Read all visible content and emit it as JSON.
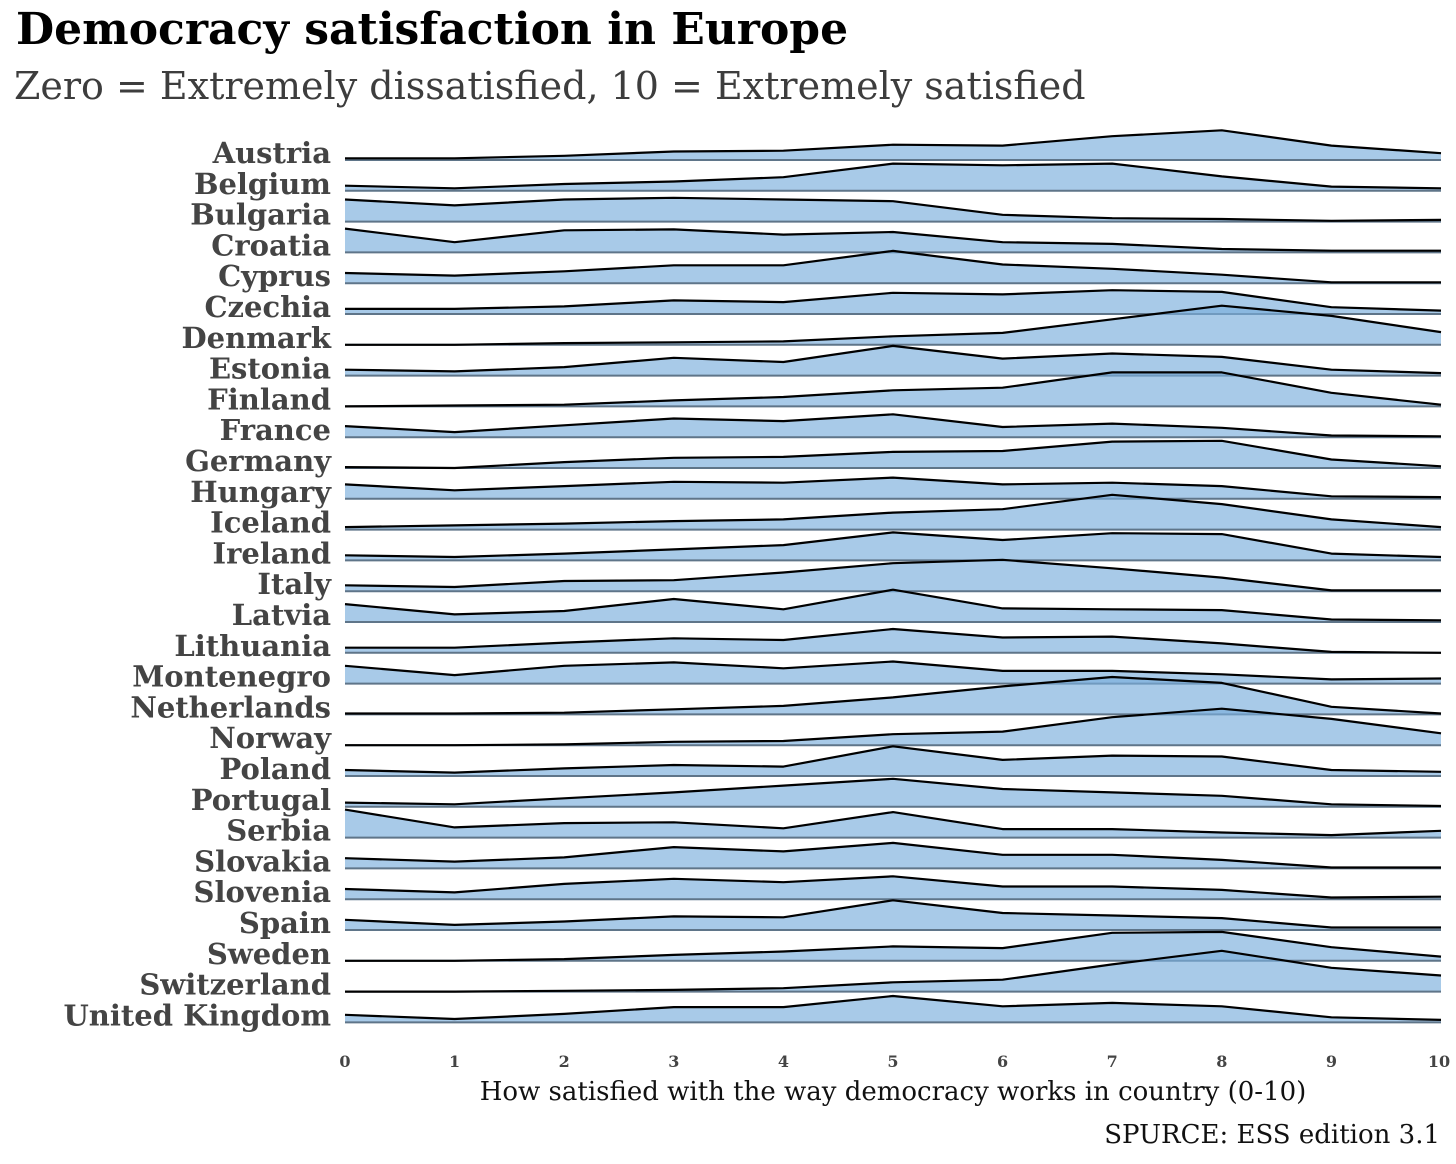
{
  "chart_data": {
    "type": "area",
    "title": "Democracy satisfaction in Europe",
    "subtitle": "Zero = Extremely dissatisfied, 10 = Extremely satisfied",
    "xlabel": "How satisfied with the way democracy works in country (0-10)",
    "source": "SPURCE: ESS edition 3.1",
    "x": [
      0,
      1,
      2,
      3,
      4,
      5,
      6,
      7,
      8,
      9,
      10
    ],
    "xlim": [
      0,
      10
    ],
    "categories": [
      "Austria",
      "Belgium",
      "Bulgaria",
      "Croatia",
      "Cyprus",
      "Czechia",
      "Denmark",
      "Estonia",
      "Finland",
      "France",
      "Germany",
      "Hungary",
      "Iceland",
      "Ireland",
      "Italy",
      "Latvia",
      "Lithuania",
      "Montenegro",
      "Netherlands",
      "Norway",
      "Poland",
      "Portugal",
      "Serbia",
      "Slovakia",
      "Slovenia",
      "Spain",
      "Sweden",
      "Switzerland",
      "United Kingdom"
    ],
    "fill_color": "#7aaedb",
    "fill_opacity": 0.65,
    "line_color": "#000000",
    "baseline_color": "#5f7589",
    "series": [
      {
        "name": "Austria",
        "values": [
          0.1,
          0.1,
          0.25,
          0.5,
          0.55,
          0.9,
          0.85,
          1.4,
          1.75,
          0.85,
          0.4
        ]
      },
      {
        "name": "Belgium",
        "values": [
          0.3,
          0.15,
          0.4,
          0.55,
          0.8,
          1.6,
          1.5,
          1.6,
          0.85,
          0.25,
          0.15
        ]
      },
      {
        "name": "Bulgaria",
        "values": [
          1.3,
          0.95,
          1.3,
          1.4,
          1.3,
          1.2,
          0.4,
          0.2,
          0.15,
          0.05,
          0.1
        ]
      },
      {
        "name": "Croatia",
        "values": [
          1.4,
          0.6,
          1.3,
          1.35,
          1.05,
          1.2,
          0.6,
          0.5,
          0.2,
          0.1,
          0.1
        ]
      },
      {
        "name": "Cyprus",
        "values": [
          0.6,
          0.45,
          0.7,
          1.05,
          1.05,
          1.9,
          1.1,
          0.85,
          0.5,
          0.05,
          0.05
        ]
      },
      {
        "name": "Czechia",
        "values": [
          0.3,
          0.3,
          0.45,
          0.8,
          0.7,
          1.25,
          1.15,
          1.4,
          1.3,
          0.4,
          0.2
        ]
      },
      {
        "name": "Denmark",
        "values": [
          0.0,
          0.0,
          0.1,
          0.15,
          0.2,
          0.5,
          0.7,
          1.5,
          2.3,
          1.7,
          0.75
        ]
      },
      {
        "name": "Estonia",
        "values": [
          0.35,
          0.25,
          0.5,
          1.05,
          0.8,
          1.75,
          1.0,
          1.3,
          1.1,
          0.35,
          0.15
        ]
      },
      {
        "name": "Finland",
        "values": [
          0.0,
          0.05,
          0.1,
          0.35,
          0.55,
          0.95,
          1.1,
          2.0,
          2.0,
          0.8,
          0.1
        ]
      },
      {
        "name": "France",
        "values": [
          0.65,
          0.3,
          0.7,
          1.1,
          0.95,
          1.35,
          0.6,
          0.8,
          0.55,
          0.1,
          0.05
        ]
      },
      {
        "name": "Germany",
        "values": [
          0.05,
          0.0,
          0.35,
          0.6,
          0.65,
          0.95,
          1.0,
          1.55,
          1.6,
          0.5,
          0.1
        ]
      },
      {
        "name": "Hungary",
        "values": [
          0.85,
          0.5,
          0.75,
          1.0,
          0.95,
          1.25,
          0.85,
          0.95,
          0.75,
          0.15,
          0.1
        ]
      },
      {
        "name": "Iceland",
        "values": [
          0.15,
          0.25,
          0.35,
          0.5,
          0.6,
          1.0,
          1.2,
          2.05,
          1.5,
          0.6,
          0.15
        ]
      },
      {
        "name": "Ireland",
        "values": [
          0.3,
          0.2,
          0.4,
          0.65,
          0.9,
          1.65,
          1.2,
          1.6,
          1.55,
          0.4,
          0.2
        ]
      },
      {
        "name": "Italy",
        "values": [
          0.35,
          0.25,
          0.6,
          0.65,
          1.1,
          1.65,
          1.85,
          1.35,
          0.8,
          0.05,
          0.05
        ]
      },
      {
        "name": "Latvia",
        "values": [
          1.05,
          0.45,
          0.65,
          1.35,
          0.75,
          1.9,
          0.8,
          0.75,
          0.7,
          0.15,
          0.1
        ]
      },
      {
        "name": "Lithuania",
        "values": [
          0.3,
          0.3,
          0.6,
          0.85,
          0.75,
          1.4,
          0.9,
          0.95,
          0.55,
          0.05,
          0.0
        ]
      },
      {
        "name": "Montenegro",
        "values": [
          1.05,
          0.5,
          1.05,
          1.25,
          0.9,
          1.3,
          0.75,
          0.75,
          0.55,
          0.25,
          0.3
        ]
      },
      {
        "name": "Netherlands",
        "values": [
          0.05,
          0.05,
          0.1,
          0.3,
          0.5,
          1.0,
          1.65,
          2.2,
          1.85,
          0.45,
          0.05
        ]
      },
      {
        "name": "Norway",
        "values": [
          0.0,
          0.0,
          0.05,
          0.2,
          0.25,
          0.65,
          0.8,
          1.65,
          2.15,
          1.55,
          0.7
        ]
      },
      {
        "name": "Poland",
        "values": [
          0.35,
          0.2,
          0.45,
          0.65,
          0.55,
          1.75,
          0.95,
          1.2,
          1.15,
          0.35,
          0.25
        ]
      },
      {
        "name": "Portugal",
        "values": [
          0.25,
          0.15,
          0.5,
          0.85,
          1.25,
          1.65,
          1.05,
          0.85,
          0.65,
          0.15,
          0.05
        ]
      },
      {
        "name": "Serbia",
        "values": [
          1.65,
          0.6,
          0.85,
          0.9,
          0.55,
          1.5,
          0.5,
          0.5,
          0.3,
          0.15,
          0.4
        ]
      },
      {
        "name": "Slovakia",
        "values": [
          0.6,
          0.4,
          0.65,
          1.25,
          1.0,
          1.5,
          0.8,
          0.8,
          0.5,
          0.05,
          0.05
        ]
      },
      {
        "name": "Slovenia",
        "values": [
          0.6,
          0.4,
          0.9,
          1.2,
          1.0,
          1.35,
          0.75,
          0.75,
          0.55,
          0.1,
          0.15
        ]
      },
      {
        "name": "Spain",
        "values": [
          0.6,
          0.3,
          0.5,
          0.8,
          0.75,
          1.75,
          1.0,
          0.85,
          0.7,
          0.15,
          0.15
        ]
      },
      {
        "name": "Sweden",
        "values": [
          0.0,
          0.0,
          0.1,
          0.35,
          0.55,
          0.85,
          0.75,
          1.65,
          1.7,
          0.8,
          0.25
        ]
      },
      {
        "name": "Switzerland",
        "values": [
          0.0,
          0.0,
          0.05,
          0.1,
          0.2,
          0.55,
          0.7,
          1.6,
          2.4,
          1.4,
          0.95
        ]
      },
      {
        "name": "United Kingdom",
        "values": [
          0.45,
          0.2,
          0.5,
          0.9,
          0.9,
          1.55,
          0.95,
          1.15,
          0.95,
          0.3,
          0.15
        ]
      }
    ]
  }
}
